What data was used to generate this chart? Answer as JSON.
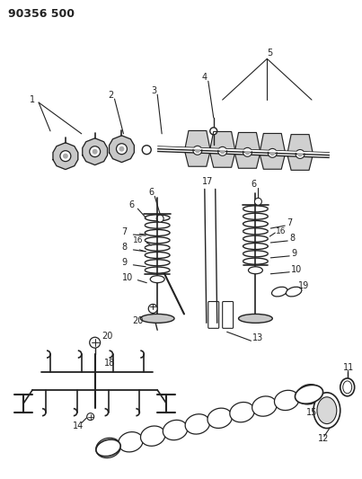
{
  "title": "90356 500",
  "bg_color": "#ffffff",
  "lc": "#222222",
  "fig_width": 4.03,
  "fig_height": 5.33,
  "dpi": 100
}
